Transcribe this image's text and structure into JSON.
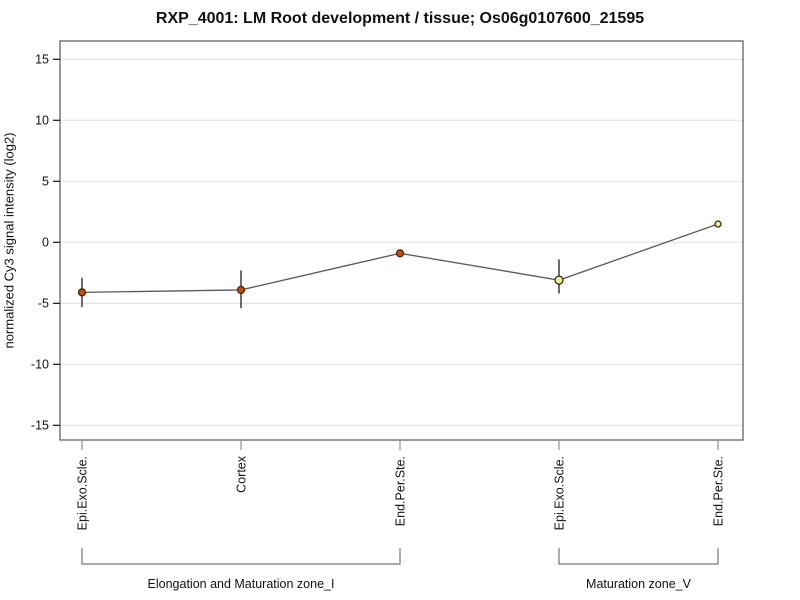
{
  "chart_data": {
    "type": "line",
    "title": "RXP_4001: LM Root development / tissue; Os06g0107600_21595",
    "ylabel": "normalized Cy3 signal intensity (log2)",
    "xlabel": "",
    "ylim": [
      -16.2,
      16.5
    ],
    "yticks": [
      15,
      10,
      5,
      0,
      -5,
      -10,
      -15
    ],
    "grid": true,
    "legend": false,
    "categories": [
      "Epi.Exo.Scle.",
      "Cortex",
      "End.Per.Ste.",
      "Epi.Exo.Scle.",
      "End.Per.Ste."
    ],
    "series": [
      {
        "name": "normalized Cy3 signal intensity",
        "values": [
          -4.1,
          -3.9,
          -0.9,
          -3.1,
          1.5
        ],
        "err_low": [
          -5.3,
          -5.4,
          null,
          -4.2,
          null
        ],
        "err_high": [
          -2.9,
          -2.3,
          null,
          -1.4,
          null
        ]
      }
    ],
    "groups": [
      {
        "label": "Elongation and Maturation zone_I",
        "start_index": 0,
        "end_index": 2
      },
      {
        "label": "Maturation zone_V",
        "start_index": 3,
        "end_index": 4
      }
    ],
    "point_styles": [
      {
        "fill": "#c64e0a",
        "stroke": "#4a1e00",
        "radius": 3.5
      },
      {
        "fill": "#c64e0a",
        "stroke": "#4a1e00",
        "radius": 3.5
      },
      {
        "fill": "#c64e0a",
        "stroke": "#4a1e00",
        "radius": 3.5
      },
      {
        "fill": "#eeee99",
        "stroke": "#26260a",
        "radius": 4
      },
      {
        "fill": "#eeee99",
        "stroke": "#26260a",
        "radius": 3
      }
    ],
    "colors": {
      "line": "#5a5a5a",
      "error_bar": "#2e2e2e",
      "grid": "#e5e5e5",
      "axis_box": "#555555",
      "y_tick": "#222222",
      "x_tick": "#999999",
      "bracket": "#777777",
      "text": "#111111",
      "background": "#ffffff"
    }
  }
}
